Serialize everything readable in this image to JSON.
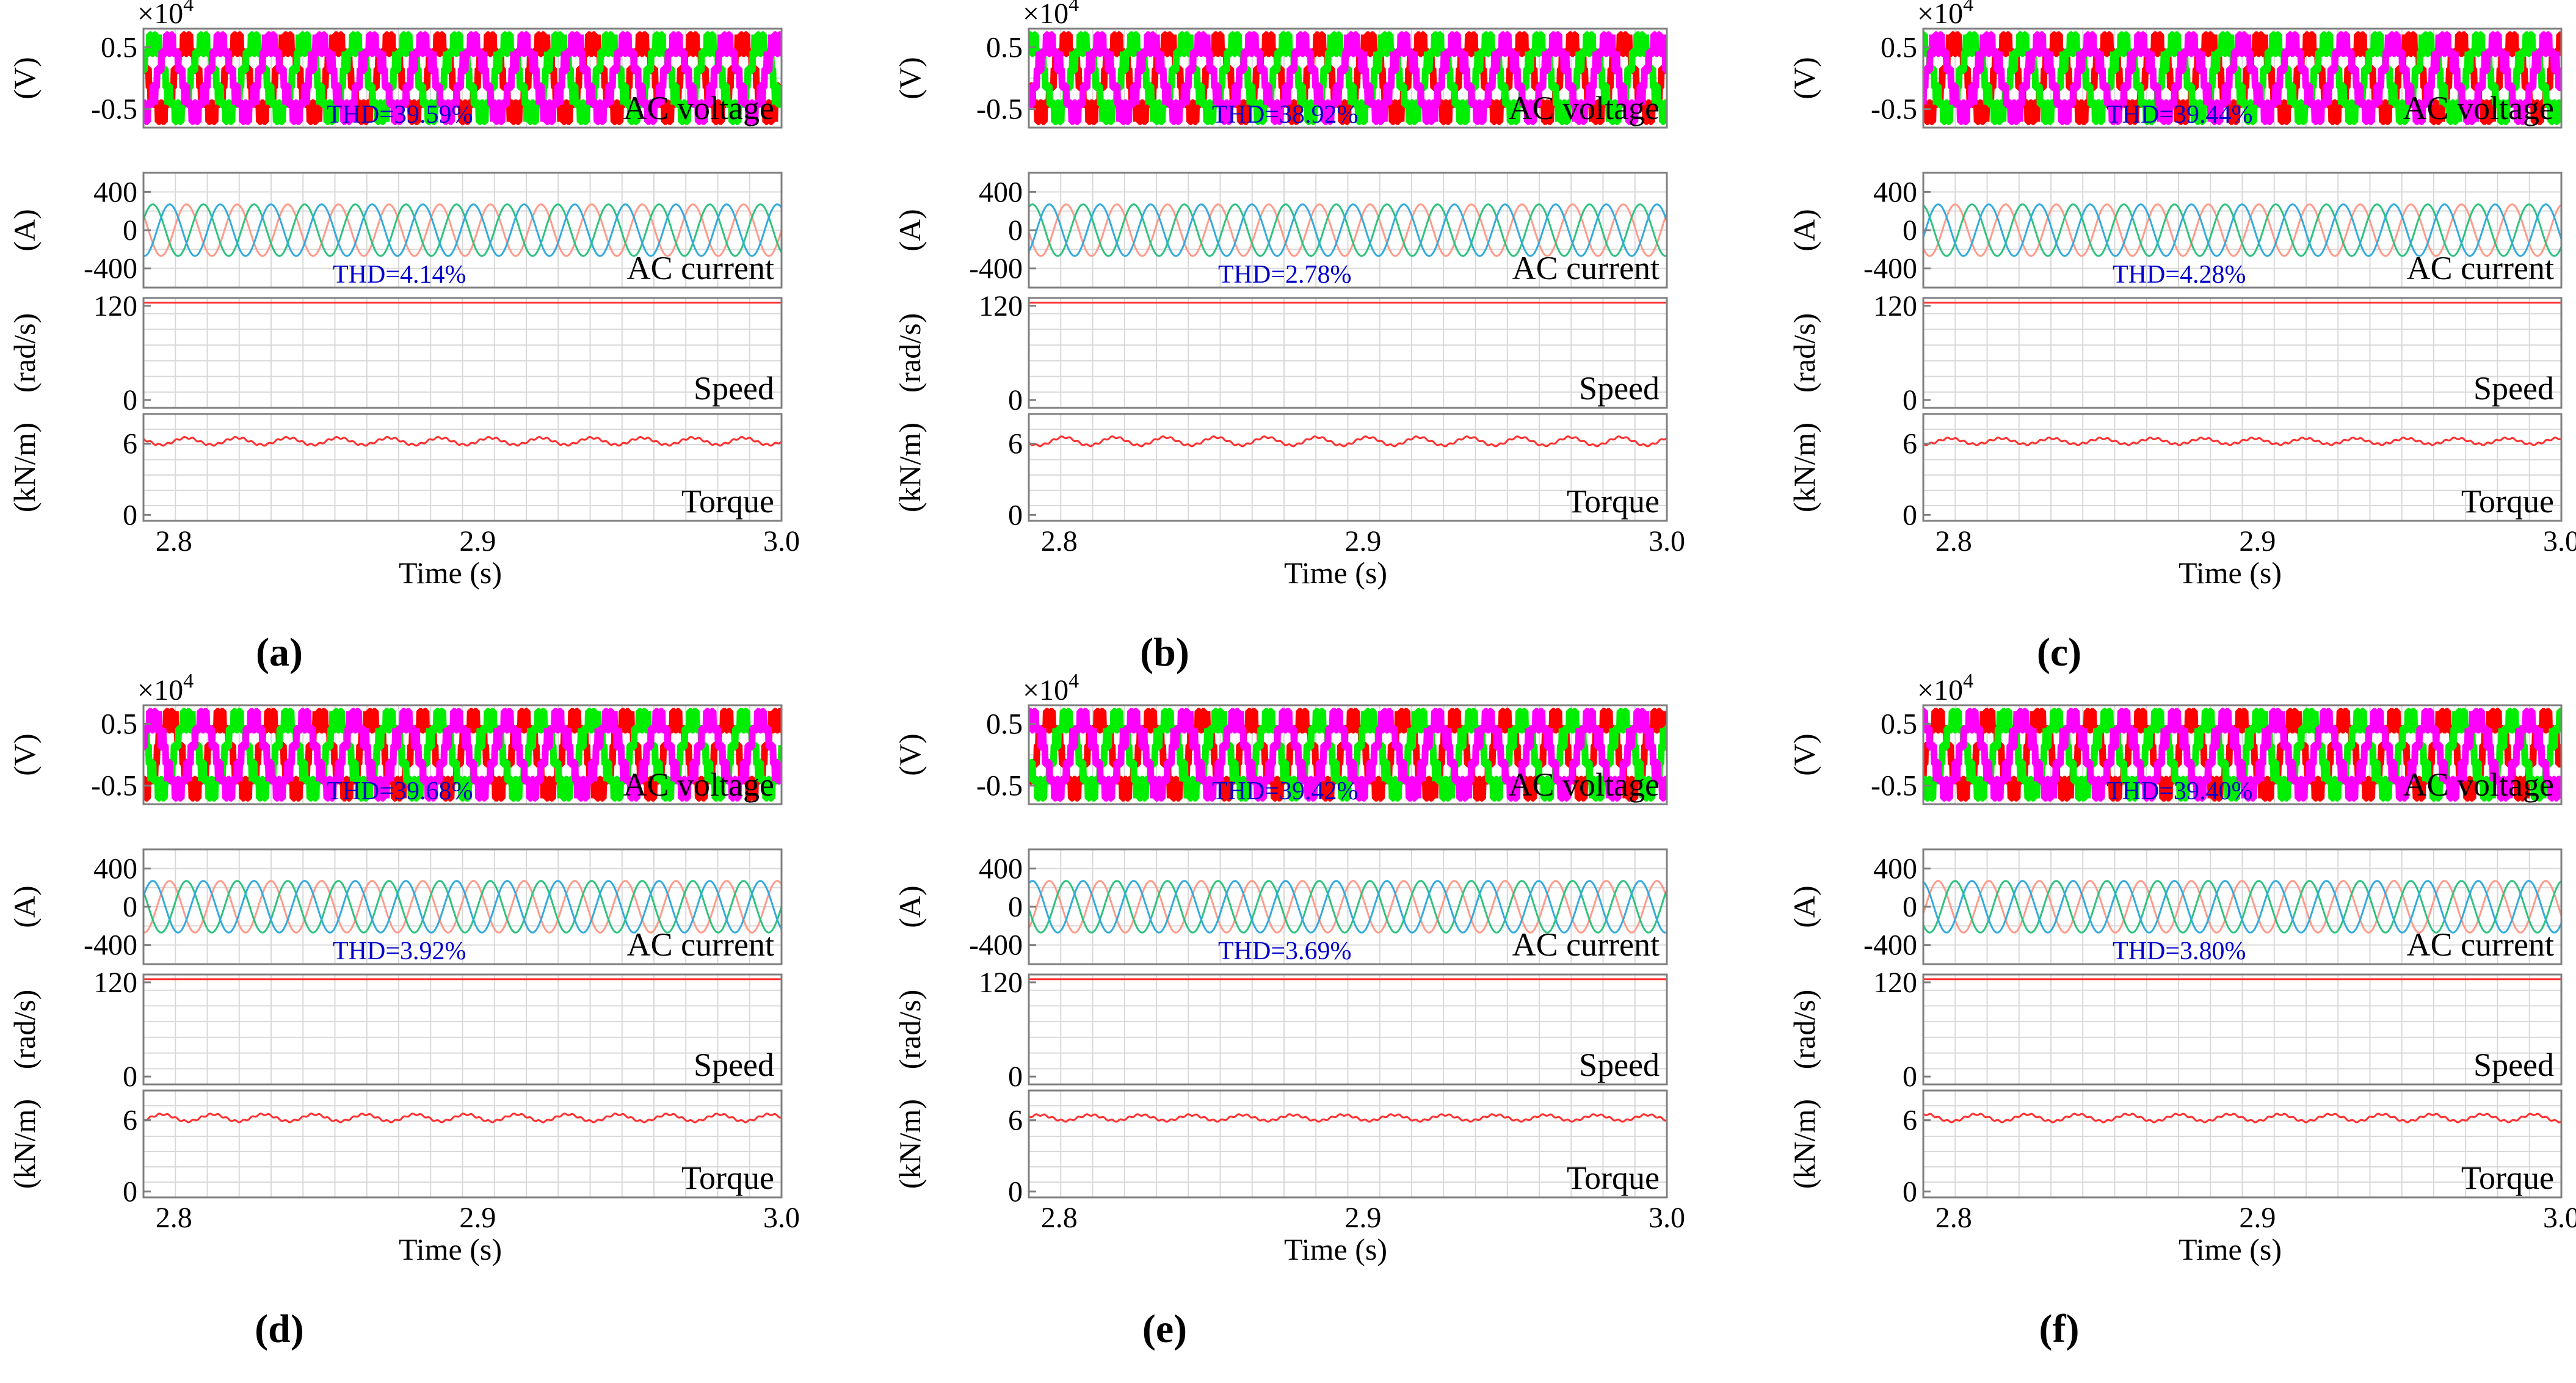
{
  "figure": {
    "colors": {
      "frame": "#7f7f7f",
      "grid": "#d9d9d9",
      "text": "#000000",
      "thd": "#0000cc",
      "voltage": [
        "#ff0000",
        "#00ee00",
        "#ff00ff"
      ],
      "current": [
        "#ff9a8a",
        "#2ec27e",
        "#33aadd"
      ],
      "speed": "#ff3030",
      "torque": "#ff3030"
    },
    "shared": {
      "voltage_ylabel": "(V)",
      "voltage_exponent": "×10",
      "voltage_exponent_power": "4",
      "current_ylabel": "(A)",
      "speed_ylabel": "(rad/s)",
      "torque_ylabel": "(kN/m)",
      "xlabel": "Time (s)",
      "voltage_title": "AC voltage",
      "current_title": "AC current",
      "speed_title": "Speed",
      "torque_title": "Torque",
      "voltage_ticks": [
        "0.5",
        "-0.5"
      ],
      "current_ticks": [
        "400",
        "0",
        "-400"
      ],
      "speed_ticks": [
        "120",
        "0"
      ],
      "torque_ticks": [
        "6",
        "0"
      ],
      "x_ticks": [
        "2.8",
        "2.9",
        "3.0"
      ]
    },
    "panels": [
      {
        "label": "(a)",
        "voltage_thd": "THD=39.59%",
        "current_thd": "THD=4.14%"
      },
      {
        "label": "(b)",
        "voltage_thd": "THD=38.92%",
        "current_thd": "THD=2.78%"
      },
      {
        "label": "(c)",
        "voltage_thd": "THD=39.44%",
        "current_thd": "THD=4.28%"
      },
      {
        "label": "(d)",
        "voltage_thd": "THD=39.68%",
        "current_thd": "THD=3.92%"
      },
      {
        "label": "(e)",
        "voltage_thd": "THD=39.42%",
        "current_thd": "THD=3.69%"
      },
      {
        "label": "(f)",
        "voltage_thd": "THD=39.40%",
        "current_thd": "THD=3.80%"
      }
    ]
  },
  "chart_data": [
    {
      "type": "line",
      "panel": "(a)",
      "xlabel": "Time (s)",
      "xlim": [
        2.79,
        3.0
      ],
      "x_ticks": [
        2.8,
        2.9,
        3.0
      ],
      "subplots": [
        {
          "title": "AC voltage",
          "ylabel": "(V)",
          "y_scale": "×10^4",
          "ylim": [
            -0.8,
            0.8
          ],
          "y_ticks": [
            0.5,
            -0.5
          ],
          "annotation": "THD=39.59%",
          "series": [
            {
              "name": "phase a",
              "amplitude": 0.55,
              "frequency_hz": 60,
              "waveform": "multilevel"
            },
            {
              "name": "phase b",
              "amplitude": 0.55,
              "frequency_hz": 60,
              "waveform": "multilevel"
            },
            {
              "name": "phase c",
              "amplitude": 0.55,
              "frequency_hz": 60,
              "waveform": "multilevel"
            }
          ]
        },
        {
          "title": "AC current",
          "ylabel": "(A)",
          "ylim": [
            -600,
            600
          ],
          "y_ticks": [
            400,
            0,
            -400
          ],
          "annotation": "THD=4.14%",
          "series": [
            {
              "name": "phase a",
              "amplitude": 270,
              "frequency_hz": 60
            },
            {
              "name": "phase b",
              "amplitude": 270,
              "frequency_hz": 60
            },
            {
              "name": "phase c",
              "amplitude": 270,
              "frequency_hz": 60
            }
          ]
        },
        {
          "title": "Speed",
          "ylabel": "(rad/s)",
          "ylim": [
            -10,
            130
          ],
          "y_ticks": [
            120,
            0
          ],
          "series": [
            {
              "name": "speed",
              "value": 124
            }
          ]
        },
        {
          "title": "Torque",
          "ylabel": "(kN/m)",
          "ylim": [
            -0.5,
            8.5
          ],
          "y_ticks": [
            6,
            0
          ],
          "series": [
            {
              "name": "torque",
              "mean": 6.2,
              "ripple": 0.3
            }
          ]
        }
      ]
    },
    {
      "type": "line",
      "panel": "(b)",
      "xlabel": "Time (s)",
      "xlim": [
        2.79,
        3.0
      ],
      "x_ticks": [
        2.8,
        2.9,
        3.0
      ],
      "subplots": [
        {
          "title": "AC voltage",
          "ylabel": "(V)",
          "y_scale": "×10^4",
          "ylim": [
            -0.8,
            0.8
          ],
          "y_ticks": [
            0.5,
            -0.5
          ],
          "annotation": "THD=38.92%",
          "series": [
            {
              "name": "phase a",
              "amplitude": 0.55,
              "frequency_hz": 60,
              "waveform": "multilevel"
            },
            {
              "name": "phase b",
              "amplitude": 0.55,
              "frequency_hz": 60,
              "waveform": "multilevel"
            },
            {
              "name": "phase c",
              "amplitude": 0.55,
              "frequency_hz": 60,
              "waveform": "multilevel"
            }
          ]
        },
        {
          "title": "AC current",
          "ylabel": "(A)",
          "ylim": [
            -600,
            600
          ],
          "y_ticks": [
            400,
            0,
            -400
          ],
          "annotation": "THD=2.78%",
          "series": [
            {
              "name": "phase a",
              "amplitude": 270,
              "frequency_hz": 60
            },
            {
              "name": "phase b",
              "amplitude": 270,
              "frequency_hz": 60
            },
            {
              "name": "phase c",
              "amplitude": 270,
              "frequency_hz": 60
            }
          ]
        },
        {
          "title": "Speed",
          "ylabel": "(rad/s)",
          "ylim": [
            -10,
            130
          ],
          "y_ticks": [
            120,
            0
          ],
          "series": [
            {
              "name": "speed",
              "value": 124
            }
          ]
        },
        {
          "title": "Torque",
          "ylabel": "(kN/m)",
          "ylim": [
            -0.5,
            8.5
          ],
          "y_ticks": [
            6,
            0
          ],
          "series": [
            {
              "name": "torque",
              "mean": 6.2,
              "ripple": 0.35
            }
          ]
        }
      ]
    },
    {
      "type": "line",
      "panel": "(c)",
      "xlabel": "Time (s)",
      "xlim": [
        2.79,
        3.0
      ],
      "x_ticks": [
        2.8,
        2.9,
        3.0
      ],
      "subplots": [
        {
          "title": "AC voltage",
          "ylabel": "(V)",
          "y_scale": "×10^4",
          "ylim": [
            -0.8,
            0.8
          ],
          "y_ticks": [
            0.5,
            -0.5
          ],
          "annotation": "THD=39.44%",
          "series": [
            {
              "name": "phase a",
              "amplitude": 0.55,
              "frequency_hz": 60,
              "waveform": "multilevel"
            },
            {
              "name": "phase b",
              "amplitude": 0.55,
              "frequency_hz": 60,
              "waveform": "multilevel"
            },
            {
              "name": "phase c",
              "amplitude": 0.55,
              "frequency_hz": 60,
              "waveform": "multilevel"
            }
          ]
        },
        {
          "title": "AC current",
          "ylabel": "(A)",
          "ylim": [
            -600,
            600
          ],
          "y_ticks": [
            400,
            0,
            -400
          ],
          "annotation": "THD=4.28%",
          "series": [
            {
              "name": "phase a",
              "amplitude": 270,
              "frequency_hz": 60
            },
            {
              "name": "phase b",
              "amplitude": 270,
              "frequency_hz": 60
            },
            {
              "name": "phase c",
              "amplitude": 270,
              "frequency_hz": 60
            }
          ]
        },
        {
          "title": "Speed",
          "ylabel": "(rad/s)",
          "ylim": [
            -10,
            130
          ],
          "y_ticks": [
            120,
            0
          ],
          "series": [
            {
              "name": "speed",
              "value": 124
            }
          ]
        },
        {
          "title": "Torque",
          "ylabel": "(kN/m)",
          "ylim": [
            -0.5,
            8.5
          ],
          "y_ticks": [
            6,
            0
          ],
          "series": [
            {
              "name": "torque",
              "mean": 6.2,
              "ripple": 0.25
            }
          ]
        }
      ]
    },
    {
      "type": "line",
      "panel": "(d)",
      "xlabel": "Time (s)",
      "xlim": [
        2.79,
        3.0
      ],
      "x_ticks": [
        2.8,
        2.9,
        3.0
      ],
      "subplots": [
        {
          "title": "AC voltage",
          "ylabel": "(V)",
          "y_scale": "×10^4",
          "ylim": [
            -0.8,
            0.8
          ],
          "y_ticks": [
            0.5,
            -0.5
          ],
          "annotation": "THD=39.68%",
          "series": [
            {
              "name": "phase a",
              "amplitude": 0.55,
              "frequency_hz": 60,
              "waveform": "multilevel"
            },
            {
              "name": "phase b",
              "amplitude": 0.55,
              "frequency_hz": 60,
              "waveform": "multilevel"
            },
            {
              "name": "phase c",
              "amplitude": 0.55,
              "frequency_hz": 60,
              "waveform": "multilevel"
            }
          ]
        },
        {
          "title": "AC current",
          "ylabel": "(A)",
          "ylim": [
            -600,
            600
          ],
          "y_ticks": [
            400,
            0,
            -400
          ],
          "annotation": "THD=3.92%",
          "series": [
            {
              "name": "phase a",
              "amplitude": 270,
              "frequency_hz": 60
            },
            {
              "name": "phase b",
              "amplitude": 270,
              "frequency_hz": 60
            },
            {
              "name": "phase c",
              "amplitude": 270,
              "frequency_hz": 60
            }
          ]
        },
        {
          "title": "Speed",
          "ylabel": "(rad/s)",
          "ylim": [
            -10,
            130
          ],
          "y_ticks": [
            120,
            0
          ],
          "series": [
            {
              "name": "speed",
              "value": 124
            }
          ]
        },
        {
          "title": "Torque",
          "ylabel": "(kN/m)",
          "ylim": [
            -0.5,
            8.5
          ],
          "y_ticks": [
            6,
            0
          ],
          "series": [
            {
              "name": "torque",
              "mean": 6.2,
              "ripple": 0.3
            }
          ]
        }
      ]
    },
    {
      "type": "line",
      "panel": "(e)",
      "xlabel": "Time (s)",
      "xlim": [
        2.79,
        3.0
      ],
      "x_ticks": [
        2.8,
        2.9,
        3.0
      ],
      "subplots": [
        {
          "title": "AC voltage",
          "ylabel": "(V)",
          "y_scale": "×10^4",
          "ylim": [
            -0.8,
            0.8
          ],
          "y_ticks": [
            0.5,
            -0.5
          ],
          "annotation": "THD=39.42%",
          "series": [
            {
              "name": "phase a",
              "amplitude": 0.55,
              "frequency_hz": 60,
              "waveform": "multilevel"
            },
            {
              "name": "phase b",
              "amplitude": 0.55,
              "frequency_hz": 60,
              "waveform": "multilevel"
            },
            {
              "name": "phase c",
              "amplitude": 0.55,
              "frequency_hz": 60,
              "waveform": "multilevel"
            }
          ]
        },
        {
          "title": "AC current",
          "ylabel": "(A)",
          "ylim": [
            -600,
            600
          ],
          "y_ticks": [
            400,
            0,
            -400
          ],
          "annotation": "THD=3.69%",
          "series": [
            {
              "name": "phase a",
              "amplitude": 270,
              "frequency_hz": 60
            },
            {
              "name": "phase b",
              "amplitude": 270,
              "frequency_hz": 60
            },
            {
              "name": "phase c",
              "amplitude": 270,
              "frequency_hz": 60
            }
          ]
        },
        {
          "title": "Speed",
          "ylabel": "(rad/s)",
          "ylim": [
            -10,
            130
          ],
          "y_ticks": [
            120,
            0
          ],
          "series": [
            {
              "name": "speed",
              "value": 124
            }
          ]
        },
        {
          "title": "Torque",
          "ylabel": "(kN/m)",
          "ylim": [
            -0.5,
            8.5
          ],
          "y_ticks": [
            6,
            0
          ],
          "series": [
            {
              "name": "torque",
              "mean": 6.2,
              "ripple": 0.25
            }
          ]
        }
      ]
    },
    {
      "type": "line",
      "panel": "(f)",
      "xlabel": "Time (s)",
      "xlim": [
        2.79,
        3.0
      ],
      "x_ticks": [
        2.8,
        2.9,
        3.0
      ],
      "subplots": [
        {
          "title": "AC voltage",
          "ylabel": "(V)",
          "y_scale": "×10^4",
          "ylim": [
            -0.8,
            0.8
          ],
          "y_ticks": [
            0.5,
            -0.5
          ],
          "annotation": "THD=39.40%",
          "series": [
            {
              "name": "phase a",
              "amplitude": 0.55,
              "frequency_hz": 60,
              "waveform": "multilevel"
            },
            {
              "name": "phase b",
              "amplitude": 0.55,
              "frequency_hz": 60,
              "waveform": "multilevel"
            },
            {
              "name": "phase c",
              "amplitude": 0.55,
              "frequency_hz": 60,
              "waveform": "multilevel"
            }
          ]
        },
        {
          "title": "AC current",
          "ylabel": "(A)",
          "ylim": [
            -600,
            600
          ],
          "y_ticks": [
            400,
            0,
            -400
          ],
          "annotation": "THD=3.80%",
          "series": [
            {
              "name": "phase a",
              "amplitude": 270,
              "frequency_hz": 60
            },
            {
              "name": "phase b",
              "amplitude": 270,
              "frequency_hz": 60
            },
            {
              "name": "phase c",
              "amplitude": 270,
              "frequency_hz": 60
            }
          ]
        },
        {
          "title": "Speed",
          "ylabel": "(rad/s)",
          "ylim": [
            -10,
            130
          ],
          "y_ticks": [
            120,
            0
          ],
          "series": [
            {
              "name": "speed",
              "value": 124
            }
          ]
        },
        {
          "title": "Torque",
          "ylabel": "(kN/m)",
          "ylim": [
            -0.5,
            8.5
          ],
          "y_ticks": [
            6,
            0
          ],
          "series": [
            {
              "name": "torque",
              "mean": 6.2,
              "ripple": 0.3
            }
          ]
        }
      ]
    }
  ]
}
